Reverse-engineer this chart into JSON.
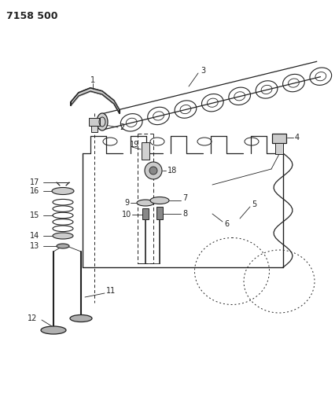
{
  "title": "7158 500",
  "bg_color": "#ffffff",
  "line_color": "#222222",
  "fig_width": 4.27,
  "fig_height": 5.33,
  "dpi": 100,
  "label_fs": 7
}
